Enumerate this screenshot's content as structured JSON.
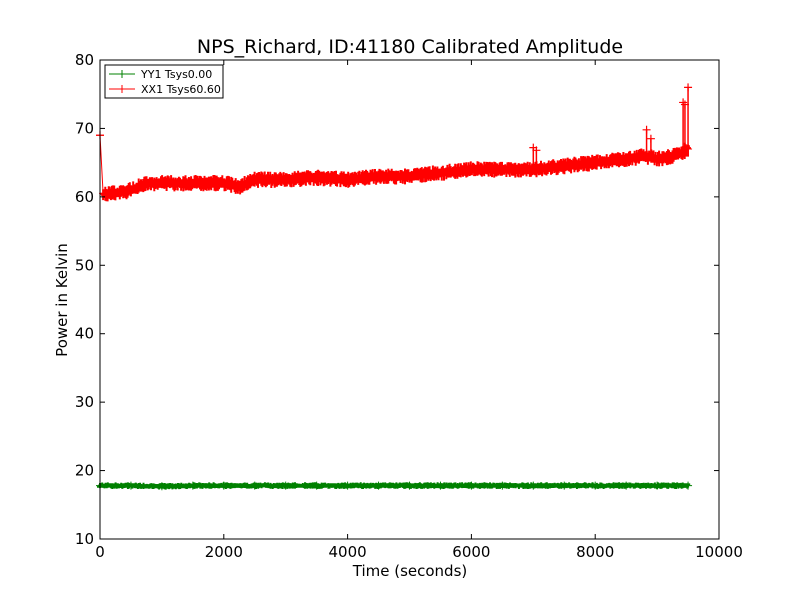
{
  "chart_data": {
    "type": "line",
    "title": "NPS_Richard, ID:41180 Calibrated Amplitude",
    "xlabel": "Time (seconds)",
    "ylabel": "Power in Kelvin",
    "xlim": [
      0,
      10000
    ],
    "ylim": [
      10,
      80
    ],
    "xticks": [
      0,
      2000,
      4000,
      6000,
      8000,
      10000
    ],
    "yticks": [
      10,
      20,
      30,
      40,
      50,
      60,
      70,
      80
    ],
    "xtick_labels": [
      "0",
      "2000",
      "4000",
      "6000",
      "8000",
      "10000"
    ],
    "ytick_labels": [
      "10",
      "20",
      "30",
      "40",
      "50",
      "60",
      "70",
      "80"
    ],
    "grid": false,
    "legend_position": "top-left",
    "series": [
      {
        "name": "YY1 Tsys0.00",
        "color": "#008000",
        "marker": "+",
        "x": [
          0,
          500,
          1000,
          1500,
          2000,
          2500,
          3000,
          3500,
          4000,
          4500,
          5000,
          5500,
          6000,
          6500,
          7000,
          7500,
          8000,
          8500,
          9000,
          9500
        ],
        "y": [
          17.8,
          17.8,
          17.7,
          17.8,
          17.8,
          17.8,
          17.8,
          17.8,
          17.8,
          17.8,
          17.8,
          17.8,
          17.8,
          17.8,
          17.8,
          17.8,
          17.8,
          17.8,
          17.8,
          17.8
        ]
      },
      {
        "name": "XX1 Tsys60.60",
        "color": "#ff0000",
        "marker": "+",
        "x": [
          0,
          50,
          250,
          500,
          750,
          1000,
          1500,
          2000,
          2250,
          2500,
          3000,
          3500,
          4000,
          4500,
          5000,
          5500,
          6000,
          6500,
          7000,
          7500,
          8000,
          8500,
          8800,
          9000,
          9200,
          9400,
          9500
        ],
        "y": [
          69.0,
          60.5,
          60.5,
          61.0,
          62.0,
          62.0,
          62.0,
          62.0,
          61.5,
          62.5,
          62.5,
          62.8,
          62.5,
          63.0,
          63.0,
          63.5,
          64.0,
          64.0,
          64.0,
          64.5,
          65.0,
          65.5,
          66.0,
          65.5,
          65.8,
          66.5,
          67.0
        ]
      }
    ],
    "spikes": [
      {
        "series": "XX1 Tsys60.60",
        "x": [
          0,
          7000,
          7050,
          8830,
          8900,
          9420,
          9450,
          9500
        ],
        "y": [
          69.0,
          67.2,
          66.8,
          69.8,
          68.5,
          73.8,
          73.5,
          76.0
        ]
      }
    ]
  }
}
